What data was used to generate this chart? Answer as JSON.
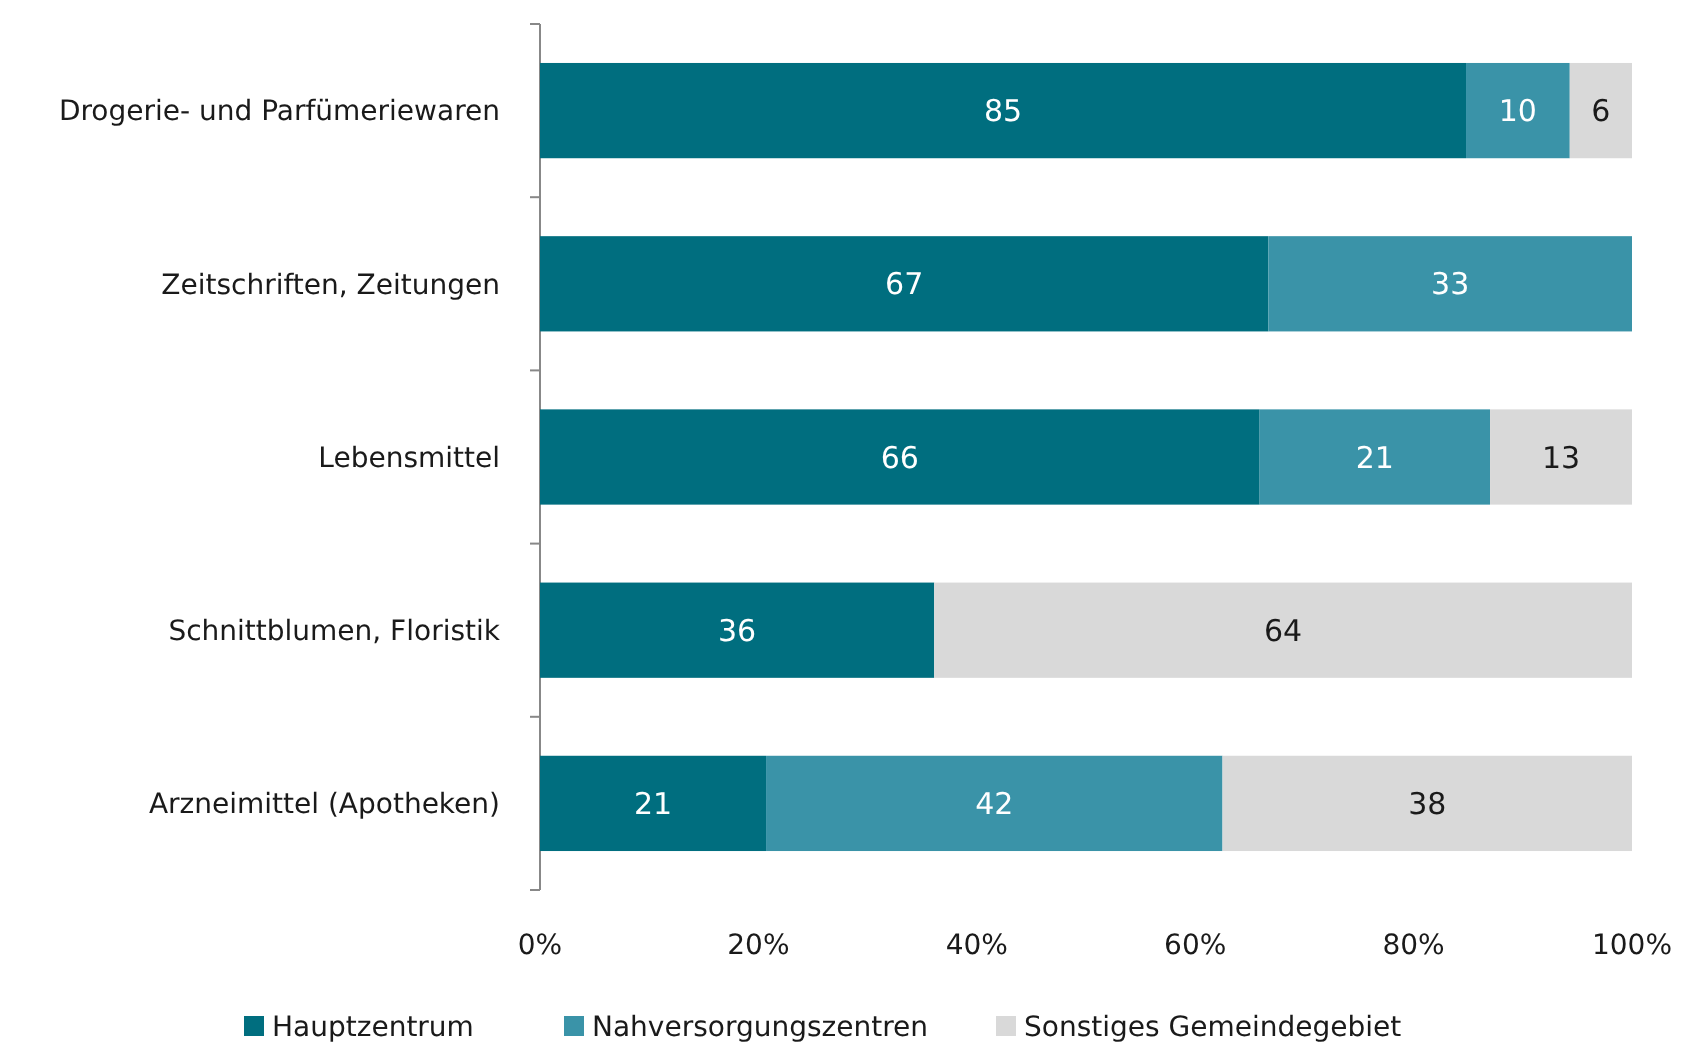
{
  "chart_data": {
    "type": "bar",
    "orientation": "horizontal",
    "stacked": true,
    "categories": [
      "Drogerie- und Parfümeriewaren",
      "Zeitschriften, Zeitungen",
      "Lebensmittel",
      "Schnittblumen, Floristik",
      "Arzneimittel (Apotheken)"
    ],
    "series": [
      {
        "name": "Hauptzentrum",
        "color": "#006e7f",
        "values": [
          84.8,
          66.7,
          65.9,
          36.1,
          20.7
        ],
        "value_labels": [
          "85",
          "67",
          "66",
          "36",
          "21"
        ]
      },
      {
        "name": "Nahversorgungszentren",
        "color": "#3a93a8",
        "values": [
          9.5,
          33.3,
          21.1,
          null,
          41.8
        ],
        "value_labels": [
          "10",
          "33",
          "21",
          null,
          "42"
        ]
      },
      {
        "name": "Sonstiges Gemeindegebiet",
        "color": "#d9d9d9",
        "values": [
          5.7,
          null,
          13.0,
          63.9,
          37.5
        ],
        "value_labels": [
          "6",
          null,
          "13",
          "64",
          "38"
        ]
      }
    ],
    "xlim": [
      0,
      100
    ],
    "xticks": [
      {
        "value": 0,
        "label": "0%"
      },
      {
        "value": 20,
        "label": "20%"
      },
      {
        "value": 40,
        "label": "40%"
      },
      {
        "value": 60,
        "label": "60%"
      },
      {
        "value": 80,
        "label": "80%"
      },
      {
        "value": 100,
        "label": "100%"
      }
    ],
    "grid": false,
    "legend": "bottom"
  }
}
